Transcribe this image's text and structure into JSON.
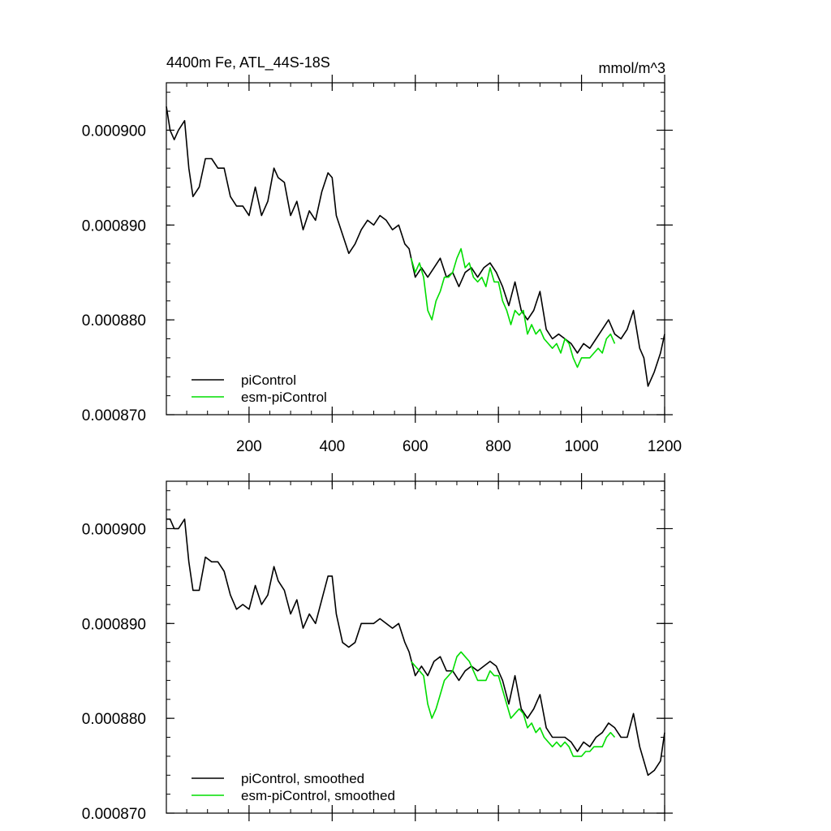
{
  "figure": {
    "title_left": "4400m Fe, ATL_44S-18S",
    "title_right": "mmol/m^3"
  },
  "chart_data": [
    {
      "type": "line",
      "xlim": [
        1,
        1200
      ],
      "ylim": [
        0.00087,
        0.000905
      ],
      "x_ticks": [
        200,
        400,
        600,
        800,
        1000,
        1200
      ],
      "x_tick_labels": [
        "200",
        "400",
        "600",
        "800",
        "1000",
        "1200"
      ],
      "y_ticks": [
        0.00087,
        0.00088,
        0.00089,
        0.0009
      ],
      "y_tick_labels": [
        "0.000870",
        "0.000880",
        "0.000890",
        "0.000900"
      ],
      "legend_position": "bottom-left",
      "series": [
        {
          "name": "piControl",
          "color": "#000000",
          "x": [
            1,
            10,
            20,
            30,
            45,
            55,
            65,
            80,
            95,
            110,
            125,
            140,
            155,
            170,
            185,
            200,
            215,
            230,
            245,
            260,
            270,
            285,
            300,
            315,
            330,
            345,
            360,
            375,
            390,
            400,
            410,
            425,
            440,
            455,
            470,
            485,
            500,
            515,
            530,
            545,
            560,
            575,
            585,
            600,
            615,
            630,
            645,
            660,
            675,
            690,
            705,
            720,
            735,
            750,
            765,
            780,
            795,
            810,
            825,
            840,
            855,
            870,
            885,
            900,
            915,
            930,
            945,
            960,
            975,
            990,
            1005,
            1020,
            1035,
            1050,
            1065,
            1080,
            1095,
            1110,
            1125,
            1140,
            1150,
            1160,
            1175,
            1190,
            1200
          ],
          "y": [
            0.0009025,
            0.0009,
            0.000899,
            0.0009,
            0.000901,
            0.000896,
            0.000893,
            0.000894,
            0.000897,
            0.000897,
            0.000896,
            0.000896,
            0.000893,
            0.000892,
            0.000892,
            0.000891,
            0.000894,
            0.000891,
            0.0008925,
            0.000896,
            0.000895,
            0.0008945,
            0.000891,
            0.0008925,
            0.0008895,
            0.0008915,
            0.0008905,
            0.0008935,
            0.0008955,
            0.000895,
            0.000891,
            0.000889,
            0.000887,
            0.000888,
            0.0008895,
            0.0008905,
            0.00089,
            0.000891,
            0.0008905,
            0.0008895,
            0.00089,
            0.000888,
            0.0008875,
            0.0008845,
            0.0008855,
            0.0008845,
            0.0008855,
            0.0008865,
            0.0008845,
            0.000885,
            0.0008835,
            0.000885,
            0.0008855,
            0.0008845,
            0.0008855,
            0.000886,
            0.000885,
            0.0008835,
            0.0008815,
            0.000884,
            0.000881,
            0.00088,
            0.000881,
            0.000883,
            0.000879,
            0.000878,
            0.0008785,
            0.000878,
            0.0008775,
            0.0008765,
            0.0008775,
            0.000877,
            0.000878,
            0.000879,
            0.00088,
            0.0008785,
            0.000878,
            0.000879,
            0.000881,
            0.000877,
            0.000876,
            0.000873,
            0.0008745,
            0.0008765,
            0.0008785
          ]
        },
        {
          "name": "esm-piControl",
          "color": "#00dd00",
          "x": [
            590,
            600,
            610,
            620,
            630,
            640,
            650,
            660,
            670,
            680,
            690,
            700,
            710,
            720,
            730,
            740,
            750,
            760,
            770,
            780,
            790,
            800,
            810,
            820,
            830,
            840,
            850,
            860,
            870,
            880,
            890,
            900,
            910,
            920,
            930,
            940,
            950,
            960,
            970,
            980,
            990,
            1000,
            1010,
            1020,
            1030,
            1040,
            1050,
            1060,
            1070,
            1080
          ],
          "y": [
            0.0008865,
            0.000885,
            0.000886,
            0.0008845,
            0.000881,
            0.00088,
            0.000882,
            0.000883,
            0.0008845,
            0.0008845,
            0.000885,
            0.0008865,
            0.0008875,
            0.0008855,
            0.000886,
            0.0008845,
            0.000884,
            0.0008845,
            0.0008835,
            0.0008855,
            0.000884,
            0.000884,
            0.000882,
            0.000881,
            0.0008795,
            0.000881,
            0.0008805,
            0.000881,
            0.0008785,
            0.0008795,
            0.0008785,
            0.000879,
            0.000878,
            0.0008775,
            0.000877,
            0.0008775,
            0.0008765,
            0.000878,
            0.0008775,
            0.000876,
            0.000875,
            0.000876,
            0.000876,
            0.000876,
            0.0008765,
            0.000877,
            0.0008765,
            0.000878,
            0.0008785,
            0.0008775
          ]
        }
      ]
    },
    {
      "type": "line",
      "xlim": [
        1,
        1200
      ],
      "ylim": [
        0.00087,
        0.000905
      ],
      "x_ticks": [
        200,
        400,
        600,
        800,
        1000,
        1200
      ],
      "y_ticks": [
        0.00087,
        0.00088,
        0.00089,
        0.0009
      ],
      "y_tick_labels": [
        "0.000870",
        "0.000880",
        "0.000890",
        "0.000900"
      ],
      "legend_position": "bottom-left",
      "series": [
        {
          "name": "piControl, smoothed",
          "color": "#000000",
          "x": [
            1,
            10,
            20,
            30,
            45,
            55,
            65,
            80,
            95,
            110,
            125,
            140,
            155,
            170,
            185,
            200,
            215,
            230,
            245,
            260,
            270,
            285,
            300,
            315,
            330,
            345,
            360,
            375,
            390,
            400,
            410,
            425,
            440,
            455,
            470,
            485,
            500,
            515,
            530,
            545,
            560,
            575,
            585,
            600,
            615,
            630,
            645,
            660,
            675,
            690,
            705,
            720,
            735,
            750,
            765,
            780,
            795,
            810,
            825,
            840,
            855,
            870,
            885,
            900,
            915,
            930,
            945,
            960,
            975,
            990,
            1005,
            1020,
            1035,
            1050,
            1065,
            1080,
            1095,
            1110,
            1125,
            1140,
            1150,
            1160,
            1175,
            1190,
            1200
          ],
          "y": [
            0.000901,
            0.000901,
            0.0009,
            0.0009,
            0.000901,
            0.0008965,
            0.0008935,
            0.0008935,
            0.000897,
            0.0008965,
            0.0008965,
            0.0008955,
            0.000893,
            0.0008915,
            0.000892,
            0.0008915,
            0.000894,
            0.000892,
            0.000893,
            0.000896,
            0.0008945,
            0.0008935,
            0.000891,
            0.0008925,
            0.0008895,
            0.000891,
            0.00089,
            0.0008925,
            0.000895,
            0.000895,
            0.000891,
            0.000888,
            0.0008875,
            0.000888,
            0.00089,
            0.00089,
            0.00089,
            0.0008905,
            0.00089,
            0.0008895,
            0.00089,
            0.000888,
            0.000887,
            0.0008845,
            0.0008855,
            0.0008845,
            0.000886,
            0.0008865,
            0.000885,
            0.000885,
            0.000884,
            0.000885,
            0.0008855,
            0.000885,
            0.0008855,
            0.000886,
            0.0008855,
            0.000884,
            0.0008815,
            0.0008845,
            0.000881,
            0.00088,
            0.000881,
            0.0008825,
            0.000879,
            0.000878,
            0.000878,
            0.000878,
            0.0008775,
            0.0008765,
            0.0008775,
            0.000877,
            0.000878,
            0.0008785,
            0.0008795,
            0.000879,
            0.000878,
            0.000878,
            0.0008805,
            0.000877,
            0.0008755,
            0.000874,
            0.0008745,
            0.0008755,
            0.0008785
          ]
        },
        {
          "name": "esm-piControl, smoothed",
          "color": "#00dd00",
          "x": [
            590,
            600,
            610,
            620,
            630,
            640,
            650,
            660,
            670,
            680,
            690,
            700,
            710,
            720,
            730,
            740,
            750,
            760,
            770,
            780,
            790,
            800,
            810,
            820,
            830,
            840,
            850,
            860,
            870,
            880,
            890,
            900,
            910,
            920,
            930,
            940,
            950,
            960,
            970,
            980,
            990,
            1000,
            1010,
            1020,
            1030,
            1040,
            1050,
            1060,
            1070,
            1080
          ],
          "y": [
            0.000886,
            0.0008855,
            0.000885,
            0.0008845,
            0.0008815,
            0.00088,
            0.000881,
            0.0008825,
            0.000884,
            0.0008845,
            0.000885,
            0.0008865,
            0.000887,
            0.0008865,
            0.000886,
            0.000885,
            0.000884,
            0.000884,
            0.000884,
            0.000885,
            0.0008845,
            0.0008845,
            0.000883,
            0.0008815,
            0.00088,
            0.0008805,
            0.000881,
            0.0008805,
            0.000879,
            0.0008795,
            0.0008785,
            0.000879,
            0.000878,
            0.0008775,
            0.000877,
            0.0008775,
            0.000877,
            0.0008775,
            0.000877,
            0.000876,
            0.000876,
            0.000876,
            0.0008765,
            0.0008765,
            0.000877,
            0.000877,
            0.000877,
            0.000878,
            0.0008785,
            0.000878
          ]
        }
      ]
    }
  ]
}
